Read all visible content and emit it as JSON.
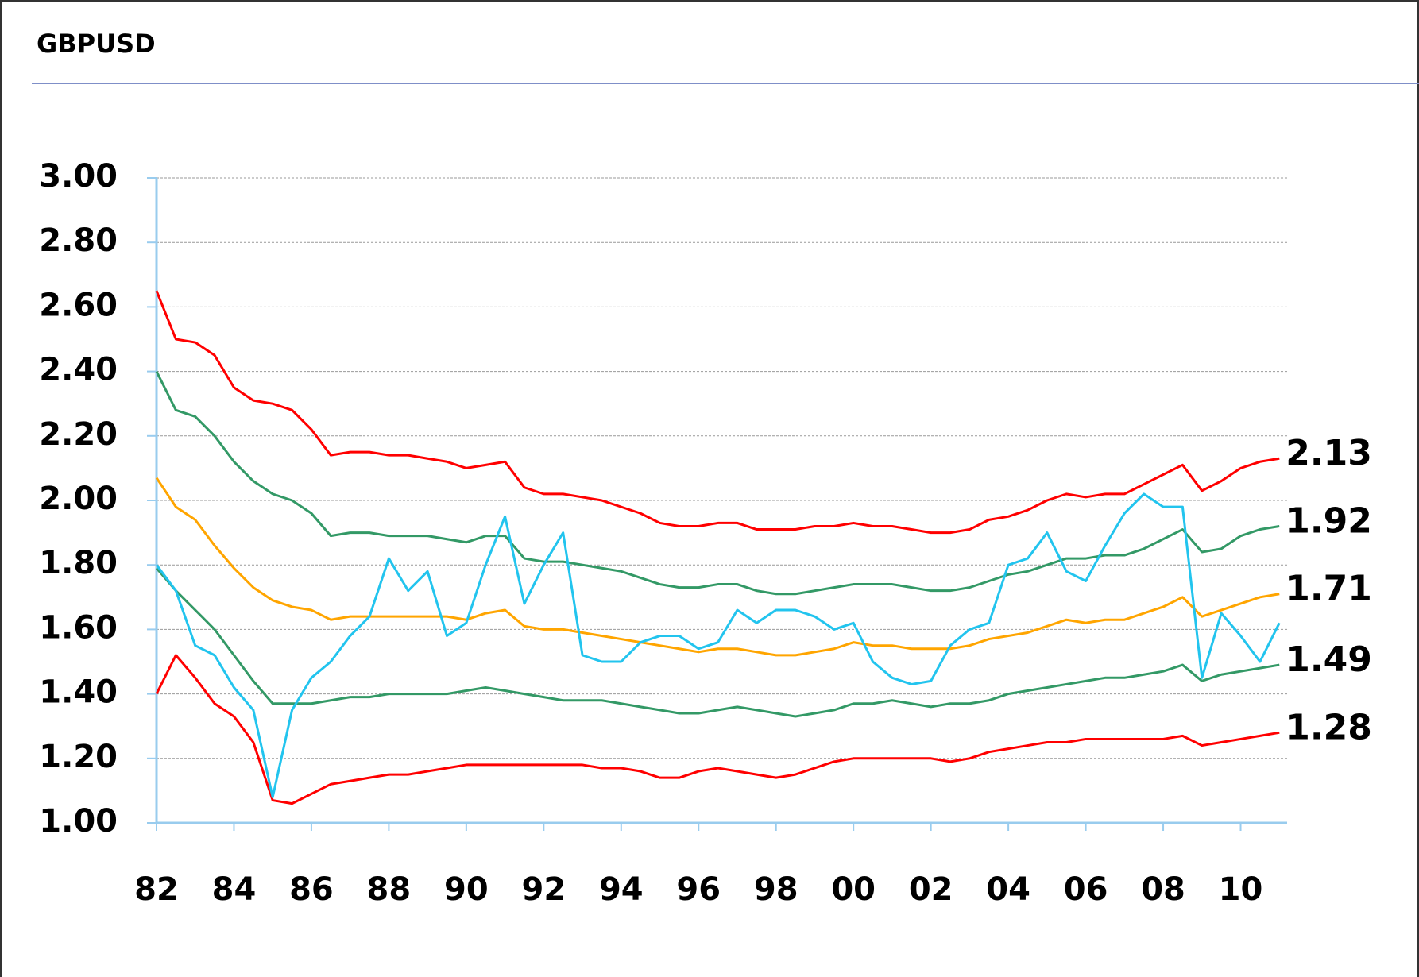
{
  "chart_data": {
    "type": "line",
    "title": "GBPUSD",
    "x": [
      1982,
      1982.5,
      1983,
      1983.5,
      1984,
      1984.5,
      1985,
      1985.5,
      1986,
      1986.5,
      1987,
      1987.5,
      1988,
      1988.5,
      1989,
      1989.5,
      1990,
      1990.5,
      1991,
      1991.5,
      1992,
      1992.5,
      1993,
      1993.5,
      1994,
      1994.5,
      1995,
      1995.5,
      1996,
      1996.5,
      1997,
      1997.5,
      1998,
      1998.5,
      1999,
      1999.5,
      2000,
      2000.5,
      2001,
      2001.5,
      2002,
      2002.5,
      2003,
      2003.5,
      2004,
      2004.5,
      2005,
      2005.5,
      2006,
      2006.5,
      2007,
      2007.5,
      2008,
      2008.5,
      2009,
      2009.5,
      2010,
      2010.5,
      2011
    ],
    "series": [
      {
        "color": "#ff0000",
        "end_label": true,
        "values": [
          2.65,
          2.5,
          2.49,
          2.45,
          2.35,
          2.31,
          2.3,
          2.28,
          2.22,
          2.14,
          2.15,
          2.15,
          2.14,
          2.14,
          2.13,
          2.12,
          2.1,
          2.11,
          2.12,
          2.04,
          2.02,
          2.02,
          2.01,
          2.0,
          1.98,
          1.96,
          1.93,
          1.92,
          1.92,
          1.93,
          1.93,
          1.91,
          1.91,
          1.91,
          1.92,
          1.92,
          1.93,
          1.92,
          1.92,
          1.91,
          1.9,
          1.9,
          1.91,
          1.94,
          1.95,
          1.97,
          2.0,
          2.02,
          2.01,
          2.02,
          2.02,
          2.05,
          2.08,
          2.11,
          2.03,
          2.06,
          2.1,
          2.12,
          2.13
        ]
      },
      {
        "color": "#339966",
        "end_label": true,
        "values": [
          2.4,
          2.28,
          2.26,
          2.2,
          2.12,
          2.06,
          2.02,
          2.0,
          1.96,
          1.89,
          1.9,
          1.9,
          1.89,
          1.89,
          1.89,
          1.88,
          1.87,
          1.89,
          1.89,
          1.82,
          1.81,
          1.81,
          1.8,
          1.79,
          1.78,
          1.76,
          1.74,
          1.73,
          1.73,
          1.74,
          1.74,
          1.72,
          1.71,
          1.71,
          1.72,
          1.73,
          1.74,
          1.74,
          1.74,
          1.73,
          1.72,
          1.72,
          1.73,
          1.75,
          1.77,
          1.78,
          1.8,
          1.82,
          1.82,
          1.83,
          1.83,
          1.85,
          1.88,
          1.91,
          1.84,
          1.85,
          1.89,
          1.91,
          1.92
        ]
      },
      {
        "color": "#ffa500",
        "end_label": true,
        "values": [
          2.07,
          1.98,
          1.94,
          1.86,
          1.79,
          1.73,
          1.69,
          1.67,
          1.66,
          1.63,
          1.64,
          1.64,
          1.64,
          1.64,
          1.64,
          1.64,
          1.63,
          1.65,
          1.66,
          1.61,
          1.6,
          1.6,
          1.59,
          1.58,
          1.57,
          1.56,
          1.55,
          1.54,
          1.53,
          1.54,
          1.54,
          1.53,
          1.52,
          1.52,
          1.53,
          1.54,
          1.56,
          1.55,
          1.55,
          1.54,
          1.54,
          1.54,
          1.55,
          1.57,
          1.58,
          1.59,
          1.61,
          1.63,
          1.62,
          1.63,
          1.63,
          1.65,
          1.67,
          1.7,
          1.64,
          1.66,
          1.68,
          1.7,
          1.71
        ]
      },
      {
        "color": "#339966",
        "end_label": true,
        "values": [
          1.79,
          1.72,
          1.66,
          1.6,
          1.52,
          1.44,
          1.37,
          1.37,
          1.37,
          1.38,
          1.39,
          1.39,
          1.4,
          1.4,
          1.4,
          1.4,
          1.41,
          1.42,
          1.41,
          1.4,
          1.39,
          1.38,
          1.38,
          1.38,
          1.37,
          1.36,
          1.35,
          1.34,
          1.34,
          1.35,
          1.36,
          1.35,
          1.34,
          1.33,
          1.34,
          1.35,
          1.37,
          1.37,
          1.38,
          1.37,
          1.36,
          1.37,
          1.37,
          1.38,
          1.4,
          1.41,
          1.42,
          1.43,
          1.44,
          1.45,
          1.45,
          1.46,
          1.47,
          1.49,
          1.44,
          1.46,
          1.47,
          1.48,
          1.49
        ]
      },
      {
        "color": "#ff0000",
        "end_label": true,
        "values": [
          1.4,
          1.52,
          1.45,
          1.37,
          1.33,
          1.25,
          1.07,
          1.06,
          1.09,
          1.12,
          1.13,
          1.14,
          1.15,
          1.15,
          1.16,
          1.17,
          1.18,
          1.18,
          1.18,
          1.18,
          1.18,
          1.18,
          1.18,
          1.17,
          1.17,
          1.16,
          1.14,
          1.14,
          1.16,
          1.17,
          1.16,
          1.15,
          1.14,
          1.15,
          1.17,
          1.19,
          1.2,
          1.2,
          1.2,
          1.2,
          1.2,
          1.19,
          1.2,
          1.22,
          1.23,
          1.24,
          1.25,
          1.25,
          1.26,
          1.26,
          1.26,
          1.26,
          1.26,
          1.27,
          1.24,
          1.25,
          1.26,
          1.27,
          1.28
        ]
      },
      {
        "color": "#22c4ee",
        "end_label": false,
        "values": [
          1.8,
          1.72,
          1.55,
          1.52,
          1.42,
          1.35,
          1.08,
          1.35,
          1.45,
          1.5,
          1.58,
          1.64,
          1.82,
          1.72,
          1.78,
          1.58,
          1.62,
          1.8,
          1.95,
          1.68,
          1.8,
          1.9,
          1.52,
          1.5,
          1.5,
          1.56,
          1.58,
          1.58,
          1.54,
          1.56,
          1.66,
          1.62,
          1.66,
          1.66,
          1.64,
          1.6,
          1.62,
          1.5,
          1.45,
          1.43,
          1.44,
          1.55,
          1.6,
          1.62,
          1.8,
          1.82,
          1.9,
          1.78,
          1.75,
          1.86,
          1.96,
          2.02,
          1.98,
          1.98,
          1.45,
          1.65,
          1.58,
          1.5,
          1.62
        ]
      }
    ],
    "xlim": [
      1982,
      2011.2
    ],
    "xticks": [
      {
        "value": 1982,
        "label": "82"
      },
      {
        "value": 1984,
        "label": "84"
      },
      {
        "value": 1986,
        "label": "86"
      },
      {
        "value": 1988,
        "label": "88"
      },
      {
        "value": 1990,
        "label": "90"
      },
      {
        "value": 1992,
        "label": "92"
      },
      {
        "value": 1994,
        "label": "94"
      },
      {
        "value": 1996,
        "label": "96"
      },
      {
        "value": 1998,
        "label": "98"
      },
      {
        "value": 2000,
        "label": "00"
      },
      {
        "value": 2002,
        "label": "02"
      },
      {
        "value": 2004,
        "label": "04"
      },
      {
        "value": 2006,
        "label": "06"
      },
      {
        "value": 2008,
        "label": "08"
      },
      {
        "value": 2010,
        "label": "10"
      }
    ],
    "ylim": [
      1,
      3
    ],
    "yticks": [
      {
        "value": 1,
        "label": "1.00"
      },
      {
        "value": 1.2,
        "label": "1.20"
      },
      {
        "value": 1.4,
        "label": "1.40"
      },
      {
        "value": 1.6,
        "label": "1.60"
      },
      {
        "value": 1.8,
        "label": "1.80"
      },
      {
        "value": 2,
        "label": "2.00"
      },
      {
        "value": 2.2,
        "label": "2.20"
      },
      {
        "value": 2.4,
        "label": "2.40"
      },
      {
        "value": 2.6,
        "label": "2.60"
      },
      {
        "value": 2.8,
        "label": "2.80"
      },
      {
        "value": 3,
        "label": "3.00"
      }
    ],
    "grid": true
  }
}
